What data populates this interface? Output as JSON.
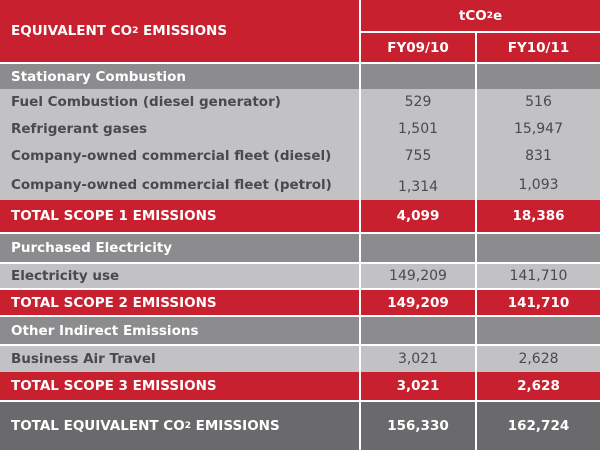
{
  "header": {
    "title_prefix": "EQUIVALENT CO",
    "title_sub": "2",
    "title_suffix": " EMISSIONS",
    "unit_prefix": "tCO",
    "unit_sub": "2",
    "unit_suffix": "e",
    "col1": "FY09/10",
    "col2": "FY10/11"
  },
  "sections": {
    "stationary": "Stationary Combustion",
    "purchased": "Purchased Electricity",
    "indirect": "Other Indirect Emissions"
  },
  "rows": {
    "fuel": {
      "label": "Fuel Combustion (diesel generator)",
      "v1": "529",
      "v2": "516"
    },
    "refrigerant": {
      "label": "Refrigerant gases",
      "v1": "1,501",
      "v2": "15,947"
    },
    "fleet_diesel": {
      "label": "Company-owned commercial fleet (diesel)",
      "v1": "755",
      "v2": "831"
    },
    "fleet_petrol": {
      "label": "Company-owned commercial fleet (petrol)",
      "v1": "1,314",
      "v2": "1,093"
    },
    "scope1": {
      "label": "TOTAL SCOPE 1 EMISSIONS",
      "v1": "4,099",
      "v2": "18,386"
    },
    "electricity": {
      "label": "Electricity use",
      "v1": "149,209",
      "v2": "141,710"
    },
    "scope2": {
      "label": "TOTAL SCOPE 2 EMISSIONS",
      "v1": "149,209",
      "v2": "141,710"
    },
    "air_travel": {
      "label": "Business Air Travel",
      "v1": "3,021",
      "v2": "2,628"
    },
    "scope3": {
      "label": "TOTAL SCOPE 3 EMISSIONS",
      "v1": "3,021",
      "v2": "2,628"
    },
    "total": {
      "label_prefix": "TOTAL EQUIVALENT CO",
      "label_sub": "2",
      "label_suffix": " EMISSIONS",
      "v1": "156,330",
      "v2": "162,724"
    }
  },
  "colors": {
    "red": "#c8202f",
    "section_grey": "#8c8c8e",
    "row_grey": "#c2c2c4",
    "total_grey": "#6a6a6c"
  }
}
